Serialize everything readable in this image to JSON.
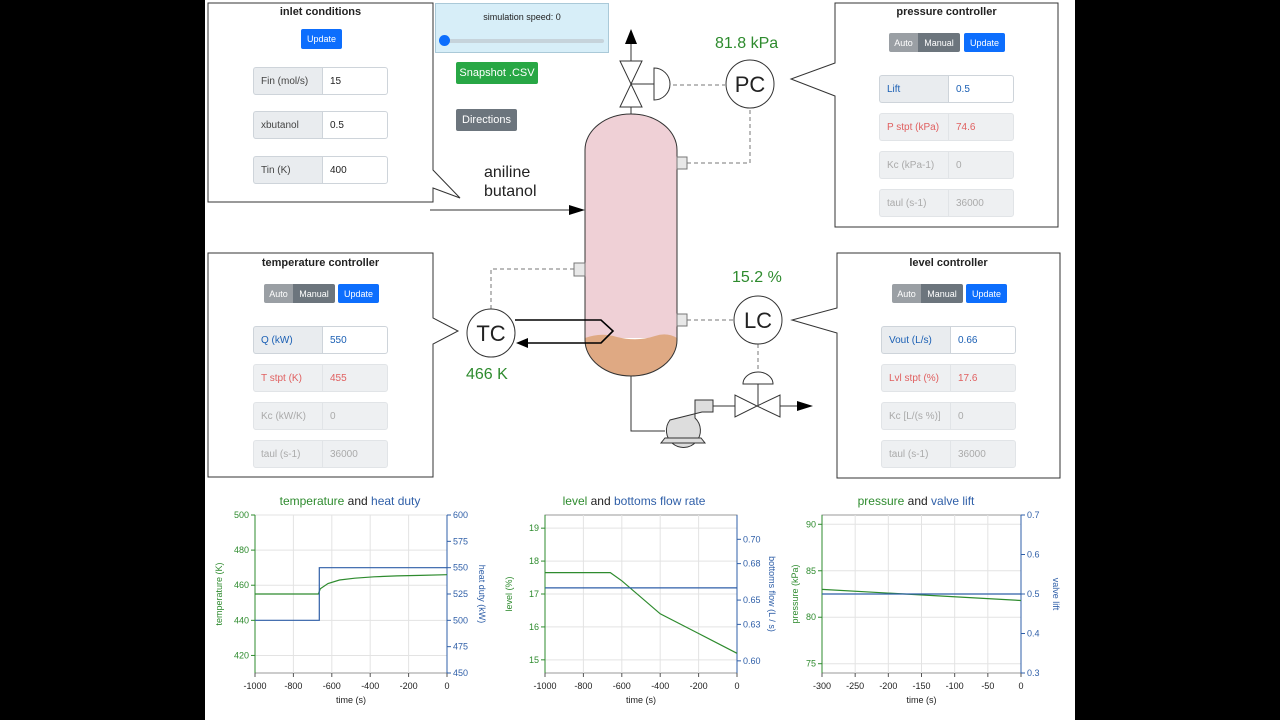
{
  "inlet": {
    "title": "inlet conditions",
    "update_label": "Update",
    "fields": [
      {
        "label": "Fin (mol/s)",
        "value": "15"
      },
      {
        "label": "xbutanol",
        "value": "0.5"
      },
      {
        "label": "Tin (K)",
        "value": "400"
      }
    ]
  },
  "sim": {
    "speed_label": "simulation speed: 0",
    "snapshot_label": "Snapshot .CSV",
    "directions_label": "Directions"
  },
  "pressure_controller": {
    "title": "pressure controller",
    "auto_label": "Auto",
    "manual_label": "Manual",
    "update_label": "Update",
    "fields": [
      {
        "label": "Lift",
        "value": "0.5"
      },
      {
        "label": "P stpt (kPa)",
        "value": "74.6"
      },
      {
        "label": "Kc (kPa-1)",
        "value": "0"
      },
      {
        "label": "taul (s-1)",
        "value": "36000"
      }
    ]
  },
  "temperature_controller": {
    "title": "temperature controller",
    "auto_label": "Auto",
    "manual_label": "Manual",
    "update_label": "Update",
    "fields": [
      {
        "label": "Q (kW)",
        "value": "550"
      },
      {
        "label": "T stpt (K)",
        "value": "455"
      },
      {
        "label": "Kc (kW/K)",
        "value": "0"
      },
      {
        "label": "taul (s-1)",
        "value": "36000"
      }
    ]
  },
  "level_controller": {
    "title": "level controller",
    "auto_label": "Auto",
    "manual_label": "Manual",
    "update_label": "Update",
    "fields": [
      {
        "label": "Vout (L/s)",
        "value": "0.66"
      },
      {
        "label": "Lvl stpt (%)",
        "value": "17.6"
      },
      {
        "label": "Kc [L/(s %)]",
        "value": "0"
      },
      {
        "label": "taul (s-1)",
        "value": "36000"
      }
    ]
  },
  "process": {
    "feed_line1": "aniline",
    "feed_line2": "butanol",
    "pc_label": "PC",
    "tc_label": "TC",
    "lc_label": "LC",
    "pc_reading": "81.8 kPa",
    "tc_reading": "466 K",
    "lc_reading": "15.2 %"
  },
  "colors": {
    "green": "#2e8b2e",
    "blue": "#2f5fa8",
    "vessel_vapor": "#efd0d6",
    "vessel_liquid": "#dfa983",
    "primary_button": "#0d6efd"
  },
  "chart_data": [
    {
      "type": "line",
      "title_parts": [
        "temperature",
        " and ",
        "heat duty"
      ],
      "xlabel": "time (s)",
      "ylabel_left": "temperature (K)",
      "ylabel_right": "heat duty (kW)",
      "xlim": [
        -1000,
        0
      ],
      "ylim_left": [
        410,
        500
      ],
      "ylim_right": [
        450,
        600
      ],
      "xticks": [
        -1000,
        -800,
        -600,
        -400,
        -200,
        0
      ],
      "yticks_left": [
        420,
        440,
        460,
        480,
        500
      ],
      "yticks_right": [
        450,
        475,
        500,
        525,
        550,
        575,
        600
      ],
      "grid": true,
      "series": [
        {
          "axis": "left",
          "color": "#2e8b2e",
          "x": [
            -1000,
            -670,
            -660,
            -620,
            -560,
            -480,
            -380,
            -260,
            -140,
            0
          ],
          "y": [
            455,
            455,
            458,
            461,
            463,
            464,
            464.8,
            465.3,
            465.6,
            466
          ]
        },
        {
          "axis": "right",
          "color": "#2f5fa8",
          "x": [
            -1000,
            -665,
            -665,
            0
          ],
          "y": [
            500,
            500,
            550,
            550
          ]
        }
      ]
    },
    {
      "type": "line",
      "title_parts": [
        "level",
        " and ",
        "bottoms flow rate"
      ],
      "xlabel": "time (s)",
      "ylabel_left": "level (%)",
      "ylabel_right": "bottoms flow (L / s)",
      "xlim": [
        -1000,
        0
      ],
      "ylim_left": [
        14.6,
        19.4
      ],
      "ylim_right": [
        0.59,
        0.72
      ],
      "xticks": [
        -1000,
        -800,
        -600,
        -400,
        -200,
        0
      ],
      "yticks_left": [
        15.0,
        16.0,
        17.0,
        18.0,
        19.0
      ],
      "yticks_right": [
        0.6,
        0.63,
        0.65,
        0.68,
        0.7
      ],
      "grid": true,
      "series": [
        {
          "axis": "left",
          "color": "#2e8b2e",
          "x": [
            -1000,
            -660,
            -600,
            -400,
            -200,
            0
          ],
          "y": [
            17.65,
            17.65,
            17.4,
            16.4,
            15.8,
            15.2
          ]
        },
        {
          "axis": "right",
          "color": "#2f5fa8",
          "x": [
            -1000,
            0
          ],
          "y": [
            0.66,
            0.66
          ]
        }
      ]
    },
    {
      "type": "line",
      "title_parts": [
        "pressure",
        " and ",
        "valve lift"
      ],
      "xlabel": "time (s)",
      "ylabel_left": "pressure (kPa)",
      "ylabel_right": "valve lift",
      "xlim": [
        -300,
        0
      ],
      "ylim_left": [
        74,
        91
      ],
      "ylim_right": [
        0.3,
        0.7
      ],
      "xticks": [
        -300,
        -250,
        -200,
        -150,
        -100,
        -50,
        0
      ],
      "yticks_left": [
        75,
        80,
        85,
        90
      ],
      "yticks_right": [
        0.3,
        0.4,
        0.5,
        0.6,
        0.7
      ],
      "grid": true,
      "series": [
        {
          "axis": "left",
          "color": "#2e8b2e",
          "x": [
            -300,
            0
          ],
          "y": [
            83,
            81.8
          ]
        },
        {
          "axis": "right",
          "color": "#2f5fa8",
          "x": [
            -300,
            0
          ],
          "y": [
            0.5,
            0.5
          ]
        }
      ]
    }
  ]
}
